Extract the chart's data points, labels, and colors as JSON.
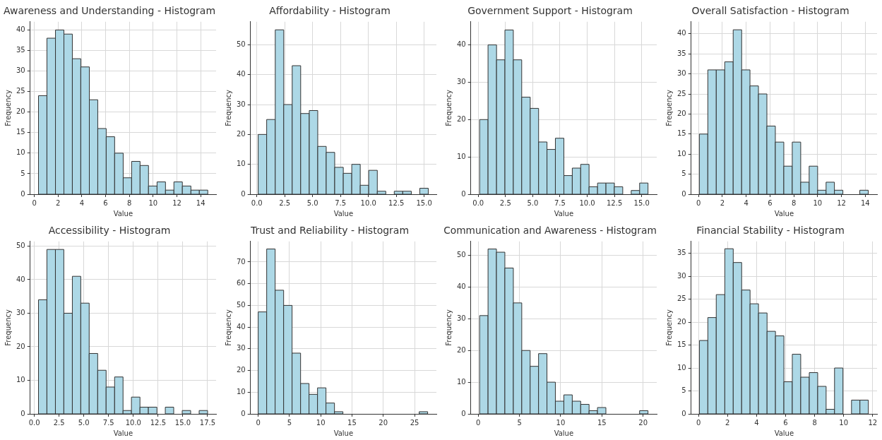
{
  "chart_data": [
    {
      "type": "histogram",
      "title": "Awareness and Understanding - Histogram",
      "xlabel": "Value",
      "ylabel": "Frequency",
      "color": "#add8e6",
      "grid": true,
      "bins": [
        0.35,
        1.06,
        1.78,
        2.49,
        3.2,
        3.91,
        4.63,
        5.34,
        6.05,
        6.76,
        7.48,
        8.19,
        8.9,
        9.61,
        10.33,
        11.04,
        11.75,
        12.46,
        13.18,
        13.89,
        14.6
      ],
      "values": [
        24,
        38,
        40,
        39,
        33,
        31,
        23,
        16,
        14,
        10,
        4,
        8,
        7,
        2,
        3,
        1,
        3,
        2,
        1,
        1
      ],
      "xlim": [
        -0.35,
        15.3
      ],
      "ylim": [
        0,
        42
      ],
      "xticks": [
        0,
        2,
        4,
        6,
        8,
        10,
        12,
        14
      ],
      "yticks": [
        0,
        5,
        10,
        15,
        20,
        25,
        30,
        35,
        40
      ]
    },
    {
      "type": "histogram",
      "title": "Affordability - Histogram",
      "xlabel": "Value",
      "ylabel": "Frequency",
      "color": "#add8e6",
      "grid": true,
      "bins": [
        0.12,
        0.88,
        1.65,
        2.41,
        3.17,
        3.93,
        4.7,
        5.46,
        6.22,
        6.98,
        7.75,
        8.51,
        9.27,
        10.03,
        10.8,
        11.56,
        12.32,
        13.08,
        13.85,
        14.61,
        15.37
      ],
      "values": [
        20,
        25,
        55,
        30,
        43,
        27,
        28,
        16,
        14,
        9,
        7,
        10,
        3,
        8,
        1,
        0,
        1,
        1,
        0,
        2
      ],
      "xlim": [
        -0.57,
        16.1
      ],
      "ylim": [
        0,
        57.7
      ],
      "xticks": [
        {
          "value": 0,
          "label": "0.0"
        },
        {
          "value": 2.5,
          "label": "2.5"
        },
        {
          "value": 5,
          "label": "5.0"
        },
        {
          "value": 7.5,
          "label": "7.5"
        },
        {
          "value": 10,
          "label": "10.0"
        },
        {
          "value": 12.5,
          "label": "12.5"
        },
        {
          "value": 15,
          "label": "15.0"
        }
      ],
      "yticks": [
        0,
        10,
        20,
        30,
        40,
        50
      ]
    },
    {
      "type": "histogram",
      "title": "Government Support - Histogram",
      "xlabel": "Value",
      "ylabel": "Frequency",
      "color": "#add8e6",
      "grid": true,
      "bins": [
        0.13,
        0.9,
        1.68,
        2.45,
        3.22,
        3.99,
        4.77,
        5.54,
        6.31,
        7.08,
        7.86,
        8.63,
        9.4,
        10.17,
        10.95,
        11.72,
        12.49,
        13.26,
        14.04,
        14.81,
        15.58
      ],
      "values": [
        20,
        40,
        36,
        44,
        36,
        26,
        23,
        14,
        12,
        15,
        5,
        7,
        8,
        2,
        3,
        3,
        2,
        0,
        1,
        3
      ],
      "xlim": [
        -0.68,
        16.38
      ],
      "ylim": [
        0,
        46.2
      ],
      "xticks": [
        {
          "value": 0,
          "label": "0.0"
        },
        {
          "value": 2.5,
          "label": "2.5"
        },
        {
          "value": 5,
          "label": "5.0"
        },
        {
          "value": 7.5,
          "label": "7.5"
        },
        {
          "value": 10,
          "label": "10.0"
        },
        {
          "value": 12.5,
          "label": "12.5"
        },
        {
          "value": 15,
          "label": "15.0"
        }
      ],
      "yticks": [
        0,
        10,
        20,
        30,
        40
      ]
    },
    {
      "type": "histogram",
      "title": "Overall Satisfaction - Histogram",
      "xlabel": "Value",
      "ylabel": "Frequency",
      "color": "#add8e6",
      "grid": true,
      "bins": [
        0.07,
        0.78,
        1.49,
        2.2,
        2.91,
        3.62,
        4.32,
        5.03,
        5.74,
        6.45,
        7.16,
        7.87,
        8.58,
        9.29,
        10,
        10.71,
        11.41,
        12.12,
        12.83,
        13.54,
        14.25
      ],
      "values": [
        15,
        31,
        31,
        33,
        41,
        31,
        27,
        25,
        17,
        13,
        7,
        13,
        3,
        7,
        1,
        3,
        1,
        0,
        0,
        1
      ],
      "xlim": [
        -0.62,
        14.99
      ],
      "ylim": [
        0,
        43
      ],
      "xticks": [
        0,
        2,
        4,
        6,
        8,
        10,
        12,
        14
      ],
      "yticks": [
        0,
        5,
        10,
        15,
        20,
        25,
        30,
        35,
        40
      ]
    },
    {
      "type": "histogram",
      "title": "Accessibility - Histogram",
      "xlabel": "Value",
      "ylabel": "Frequency",
      "color": "#add8e6",
      "grid": true,
      "bins": [
        0.42,
        1.27,
        2.13,
        2.98,
        3.84,
        4.69,
        5.54,
        6.4,
        7.25,
        8.11,
        8.96,
        9.81,
        10.67,
        11.52,
        12.38,
        13.23,
        14.08,
        14.94,
        15.79,
        16.65,
        17.5
      ],
      "values": [
        34,
        49,
        49,
        30,
        41,
        33,
        18,
        13,
        8,
        11,
        1,
        5,
        2,
        2,
        0,
        2,
        0,
        1,
        0,
        1
      ],
      "xlim": [
        -0.42,
        18.36
      ],
      "ylim": [
        0,
        51.4
      ],
      "xticks": [
        {
          "value": 0,
          "label": "0.0"
        },
        {
          "value": 2.5,
          "label": "2.5"
        },
        {
          "value": 5,
          "label": "5.0"
        },
        {
          "value": 7.5,
          "label": "7.5"
        },
        {
          "value": 10,
          "label": "10.0"
        },
        {
          "value": 12.5,
          "label": "12.5"
        },
        {
          "value": 15,
          "label": "15.0"
        },
        {
          "value": 17.5,
          "label": "17.5"
        }
      ],
      "yticks": [
        0,
        10,
        20,
        30,
        40,
        50
      ]
    },
    {
      "type": "histogram",
      "title": "Trust and Reliability - Histogram",
      "xlabel": "Value",
      "ylabel": "Frequency",
      "color": "#add8e6",
      "grid": true,
      "bins": [
        0,
        1.36,
        2.71,
        4.07,
        5.42,
        6.78,
        8.13,
        9.49,
        10.84,
        12.2,
        13.55,
        14.91,
        16.26,
        17.62,
        18.97,
        20.33,
        21.68,
        23.04,
        24.39,
        25.75,
        27.1
      ],
      "values": [
        47,
        76,
        57,
        50,
        28,
        14,
        9,
        12,
        5,
        1,
        0,
        0,
        0,
        0,
        0,
        0,
        0,
        0,
        0,
        1
      ],
      "xlim": [
        -1.23,
        28.5
      ],
      "ylim": [
        0,
        79.5
      ],
      "xticks": [
        0,
        5,
        10,
        15,
        20,
        25
      ],
      "yticks": [
        0,
        10,
        20,
        30,
        40,
        50,
        60,
        70
      ]
    },
    {
      "type": "histogram",
      "title": "Communication and Awareness - Histogram",
      "xlabel": "Value",
      "ylabel": "Frequency",
      "color": "#add8e6",
      "grid": true,
      "bins": [
        0.17,
        1.19,
        2.21,
        3.23,
        4.26,
        5.28,
        6.3,
        7.32,
        8.34,
        9.36,
        10.39,
        11.41,
        12.43,
        13.45,
        14.47,
        15.49,
        16.51,
        17.54,
        18.56,
        19.58,
        20.6
      ],
      "values": [
        31,
        52,
        51,
        46,
        35,
        20,
        15,
        19,
        10,
        4,
        6,
        4,
        3,
        1,
        2,
        0,
        0,
        0,
        0,
        1
      ],
      "xlim": [
        -0.9,
        21.66
      ],
      "ylim": [
        0,
        54.4
      ],
      "xticks": [
        0,
        5,
        10,
        15,
        20
      ],
      "yticks": [
        0,
        10,
        20,
        30,
        40,
        50
      ]
    },
    {
      "type": "histogram",
      "title": "Financial Stability - Histogram",
      "xlabel": "Value",
      "ylabel": "Frequency",
      "color": "#add8e6",
      "grid": true,
      "bins": [
        0.06,
        0.64,
        1.22,
        1.81,
        2.39,
        2.97,
        3.55,
        4.13,
        4.72,
        5.3,
        5.88,
        6.46,
        7.04,
        7.63,
        8.21,
        8.79,
        9.37,
        9.95,
        10.54,
        11.12,
        11.7
      ],
      "values": [
        16,
        21,
        26,
        36,
        33,
        27,
        24,
        22,
        18,
        17,
        7,
        13,
        8,
        9,
        6,
        1,
        10,
        0,
        3,
        3
      ],
      "xlim": [
        -0.51,
        12.3
      ],
      "ylim": [
        0,
        37.6
      ],
      "xticks": [
        0,
        2,
        4,
        6,
        8,
        10,
        12
      ],
      "yticks": [
        0,
        5,
        10,
        15,
        20,
        25,
        30,
        35
      ]
    }
  ]
}
